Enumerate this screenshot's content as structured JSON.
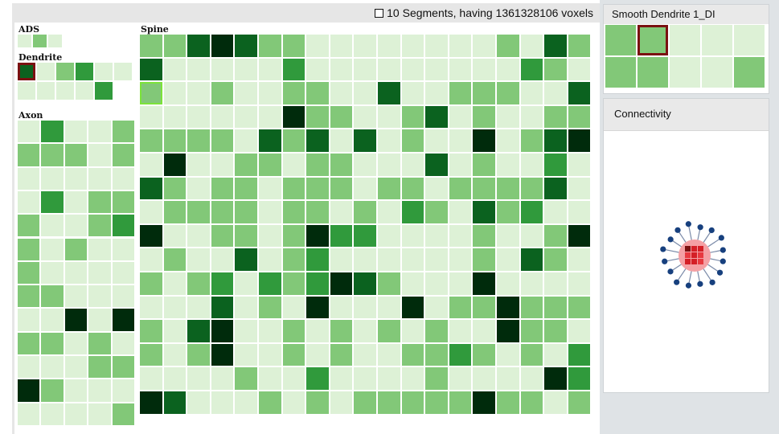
{
  "header": {
    "checkbox_icon": "checkbox-icon",
    "status_text": "10 Segments, having 1361328106 voxels"
  },
  "colors": {
    "bg": "#e9f5e4",
    "palette": [
      "#ddf1d6",
      "#82c878",
      "#309a3c",
      "#0b621f",
      "#002b0c"
    ],
    "selected_outline": "#7a1111",
    "hover_outline": "#7ce33a"
  },
  "left_panel": {
    "ads": {
      "label": "ADS",
      "cols": 3,
      "cells": [
        0,
        1,
        0
      ],
      "selected": []
    },
    "dendrite": {
      "label": "Dendrite",
      "cols": 6,
      "cells": [
        3,
        0,
        1,
        2,
        0,
        0,
        0,
        0,
        0,
        0,
        2
      ],
      "selected": [
        0
      ]
    },
    "axon": {
      "label": "Axon",
      "cols": 5,
      "cells": [
        0,
        2,
        0,
        0,
        1,
        1,
        1,
        1,
        0,
        1,
        0,
        0,
        0,
        0,
        0,
        0,
        2,
        0,
        1,
        1,
        1,
        0,
        0,
        1,
        2,
        1,
        0,
        1,
        0,
        0,
        1,
        0,
        0,
        0,
        0,
        1,
        1,
        0,
        0,
        0,
        0,
        0,
        4,
        0,
        4,
        1,
        1,
        0,
        1,
        0,
        0,
        0,
        0,
        1,
        1,
        4,
        1,
        0,
        0,
        0,
        0,
        0,
        0,
        0,
        1
      ],
      "selected": []
    }
  },
  "spine": {
    "label": "Spine",
    "cols": 19,
    "cells": [
      1,
      1,
      3,
      4,
      3,
      1,
      1,
      0,
      0,
      0,
      0,
      0,
      0,
      0,
      0,
      1,
      0,
      3,
      1,
      3,
      0,
      0,
      0,
      0,
      0,
      2,
      0,
      0,
      0,
      0,
      0,
      0,
      0,
      0,
      0,
      2,
      1,
      0,
      1,
      0,
      0,
      1,
      0,
      0,
      1,
      1,
      0,
      0,
      3,
      0,
      0,
      1,
      1,
      1,
      0,
      0,
      3,
      0,
      0,
      0,
      0,
      0,
      0,
      4,
      1,
      1,
      0,
      0,
      1,
      3,
      0,
      1,
      0,
      0,
      1,
      1,
      1,
      1,
      1,
      1,
      0,
      3,
      1,
      3,
      0,
      3,
      0,
      1,
      0,
      0,
      4,
      0,
      1,
      3,
      4,
      0,
      4,
      0,
      0,
      1,
      1,
      0,
      1,
      1,
      0,
      0,
      0,
      3,
      0,
      1,
      0,
      0,
      2,
      0,
      3,
      1,
      0,
      1,
      1,
      0,
      1,
      1,
      1,
      0,
      1,
      1,
      0,
      1,
      1,
      1,
      1,
      3,
      0,
      0,
      1,
      1,
      1,
      1,
      0,
      1,
      1,
      0,
      1,
      0,
      2,
      1,
      0,
      3,
      1,
      2,
      0,
      0,
      4,
      0,
      0,
      1,
      1,
      0,
      1,
      4,
      2,
      2,
      0,
      0,
      0,
      0,
      1,
      0,
      0,
      1,
      4,
      0,
      1,
      0,
      0,
      3,
      0,
      1,
      2,
      0,
      0,
      0,
      0,
      0,
      0,
      1,
      0,
      3,
      1,
      0,
      1,
      0,
      1,
      2,
      0,
      2,
      1,
      2,
      4,
      3,
      1,
      0,
      0,
      0,
      4,
      0,
      0,
      0,
      0,
      0,
      0,
      0,
      3,
      0,
      1,
      0,
      4,
      0,
      0,
      0,
      4,
      0,
      1,
      1,
      4,
      1,
      1,
      1,
      1,
      0,
      3,
      4,
      0,
      0,
      1,
      0,
      1,
      0,
      1,
      0,
      1,
      0,
      0,
      4,
      1,
      1,
      0,
      1,
      0,
      1,
      4,
      0,
      0,
      1,
      0,
      1,
      0,
      0,
      1,
      1,
      2,
      1,
      0,
      1,
      0,
      2,
      0,
      0,
      0,
      0,
      1,
      0,
      0,
      2,
      0,
      0,
      0,
      0,
      1,
      0,
      0,
      0,
      0,
      4,
      2,
      4,
      3,
      0,
      0,
      0,
      1,
      0,
      1,
      0,
      1,
      1,
      1,
      1,
      1,
      4,
      1,
      1,
      0,
      1
    ],
    "selected": [
      38
    ]
  },
  "detail_panel": {
    "title": "Smooth Dendrite 1_DI",
    "cols": 5,
    "cells": [
      1,
      1,
      0,
      0,
      0,
      1,
      1,
      0,
      0,
      1
    ],
    "selected": [
      1
    ]
  },
  "connectivity": {
    "title": "Connectivity",
    "center_color": "#f4a0a4",
    "node_color": "#17407e",
    "inner_colors": [
      "#7a1111",
      "#d41f26",
      "#d41f26",
      "#e7393f",
      "#d41f26",
      "#e7393f",
      "#d41f26",
      "#d41f26",
      "#e7393f"
    ],
    "node_count": 16
  }
}
